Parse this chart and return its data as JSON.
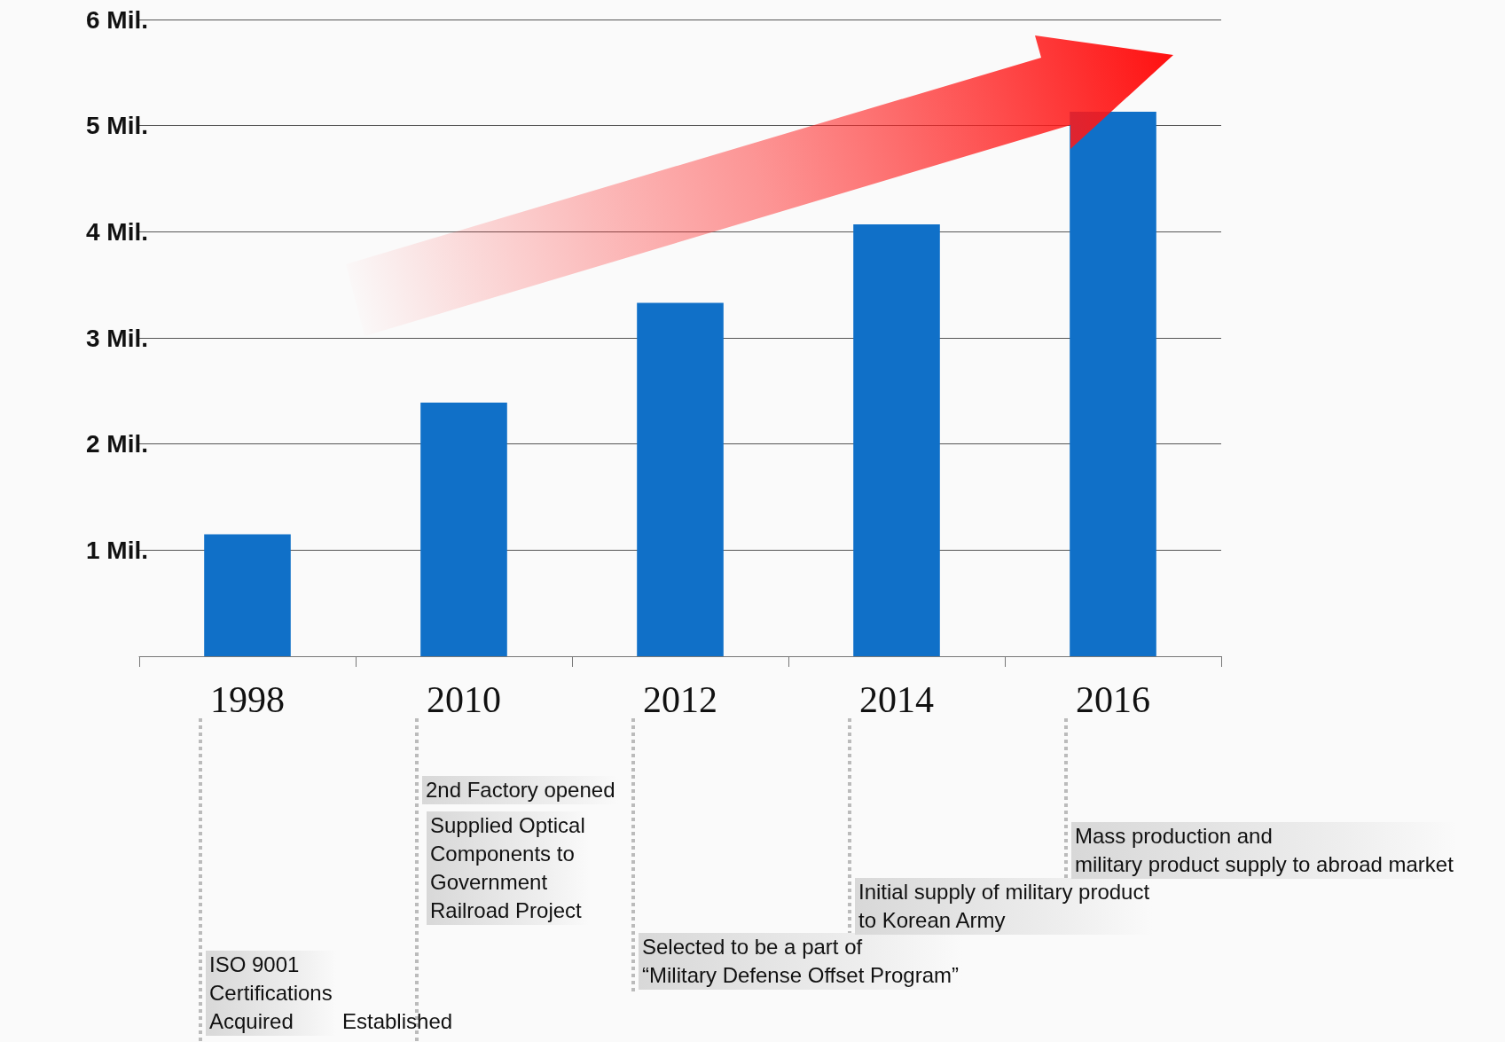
{
  "chart_data": {
    "type": "bar",
    "categories": [
      "1998",
      "2010",
      "2012",
      "2014",
      "2016"
    ],
    "values": [
      1.15,
      2.39,
      3.33,
      4.07,
      5.13
    ],
    "color": "#1070c8",
    "ylim": [
      0,
      6
    ],
    "yticks": [
      {
        "value": 1,
        "label": "1 Mil."
      },
      {
        "value": 2,
        "label": "2 Mil."
      },
      {
        "value": 3,
        "label": "3 Mil."
      },
      {
        "value": 4,
        "label": "4 Mil."
      },
      {
        "value": 5,
        "label": "5 Mil."
      },
      {
        "value": 6,
        "label": "6 Mil."
      }
    ],
    "grid": true,
    "annotations": [
      "ISO 9001\nCertifications\nAcquired",
      "Established",
      "2nd Factory opened",
      "Supplied Optical\nComponents to\nGovernment\nRailroad Project",
      "Selected to be a part of\n“Military Defense Offset Program”",
      "Initial supply of military product\nto Korean Army",
      "Mass production and\nmilitary product supply to abroad market"
    ]
  }
}
